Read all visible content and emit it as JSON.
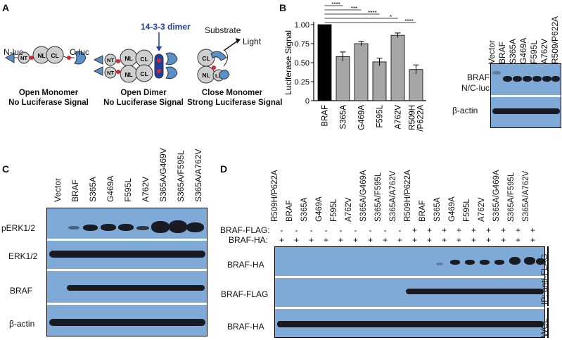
{
  "panels": {
    "a": "A",
    "b": "B",
    "c": "C",
    "d": "D"
  },
  "schematic": {
    "n_luc": "N-luc",
    "c_luc": "C-luc",
    "dimer_label": "14-3-3 dimer",
    "substrate": "Substrate",
    "light": "Light",
    "domains": {
      "nt": "NT",
      "nl": "NL",
      "cl": "CL",
      "ln": "LN"
    },
    "states": [
      {
        "title": "Open Monomer",
        "sub": "No Luciferase Signal"
      },
      {
        "title": "Open Dimer",
        "sub": "No Luciferase Signal"
      },
      {
        "title": "Close Monomer",
        "sub": "Strong Luciferase Signal"
      }
    ],
    "colors": {
      "nluc": "#5b8fc9",
      "domain": "#cfcfcf",
      "dimer": "#1f3f9e",
      "linker": "#d8262f"
    }
  },
  "chart_data": {
    "type": "bar",
    "categories": [
      "BRAF",
      "S365A",
      "G469A",
      "F595L",
      "A762V",
      "R509H\n/P622A"
    ],
    "values": [
      1.0,
      0.58,
      0.75,
      0.51,
      0.86,
      0.41
    ],
    "errors": [
      0,
      0.06,
      0.03,
      0.05,
      0.03,
      0.06
    ],
    "bar_colors": [
      "#000000",
      "#a6a6a6",
      "#a6a6a6",
      "#a6a6a6",
      "#a6a6a6",
      "#a6a6a6"
    ],
    "ylabel": "Luciferase Signal",
    "ylim": [
      0,
      1.0
    ],
    "yticks": [
      "0",
      "0.25",
      "0.50",
      "0.75",
      "1.00"
    ],
    "significance": [
      "****",
      "***",
      "****",
      "*",
      "****"
    ]
  },
  "blot_b": {
    "lanes": [
      "Vector",
      "BRAF",
      "S365A",
      "G469A",
      "F595L",
      "A762V",
      "R509/P622A"
    ],
    "rows": [
      "BRAF\nN/C-luc",
      "β-actin"
    ]
  },
  "blot_c": {
    "lanes": [
      "Vector",
      "BRAF",
      "S365A",
      "G469A",
      "F595L",
      "A762V",
      "S365A/G469V",
      "S365A/F595L",
      "S365A/A762V"
    ],
    "rows": [
      "pERK1/2",
      "ERK1/2",
      "BRAF",
      "β-actin"
    ]
  },
  "blot_d": {
    "lanes": [
      "R509H/P622A",
      "BRAF",
      "S365A",
      "G469A",
      "F595L",
      "A762V",
      "S365A/G469A",
      "S365A/F595L",
      "S365A/A762V",
      "R509H/P622A",
      "BRAF",
      "S365A",
      "G469A",
      "F595L",
      "A762V",
      "S365A/G469A",
      "S365A/F595L",
      "S365A/A762V"
    ],
    "flag_label": "BRAF-FLAG:",
    "ha_label": "BRAF-HA:",
    "flag_signs": [
      "-",
      "-",
      "-",
      "-",
      "-",
      "-",
      "-",
      "-",
      "-",
      "+",
      "+",
      "+",
      "+",
      "+",
      "+",
      "+",
      "+",
      "+"
    ],
    "ha_signs": [
      "+",
      "+",
      "+",
      "+",
      "+",
      "+",
      "+",
      "+",
      "+",
      "+",
      "+",
      "+",
      "+",
      "+",
      "+",
      "+",
      "+",
      "+"
    ],
    "rows": [
      "BRAF-HA",
      "BRAF-FLAG",
      "BRAF-HA"
    ],
    "ip_label": "IP: anti-FLAG",
    "wcl_label": "WCL"
  }
}
